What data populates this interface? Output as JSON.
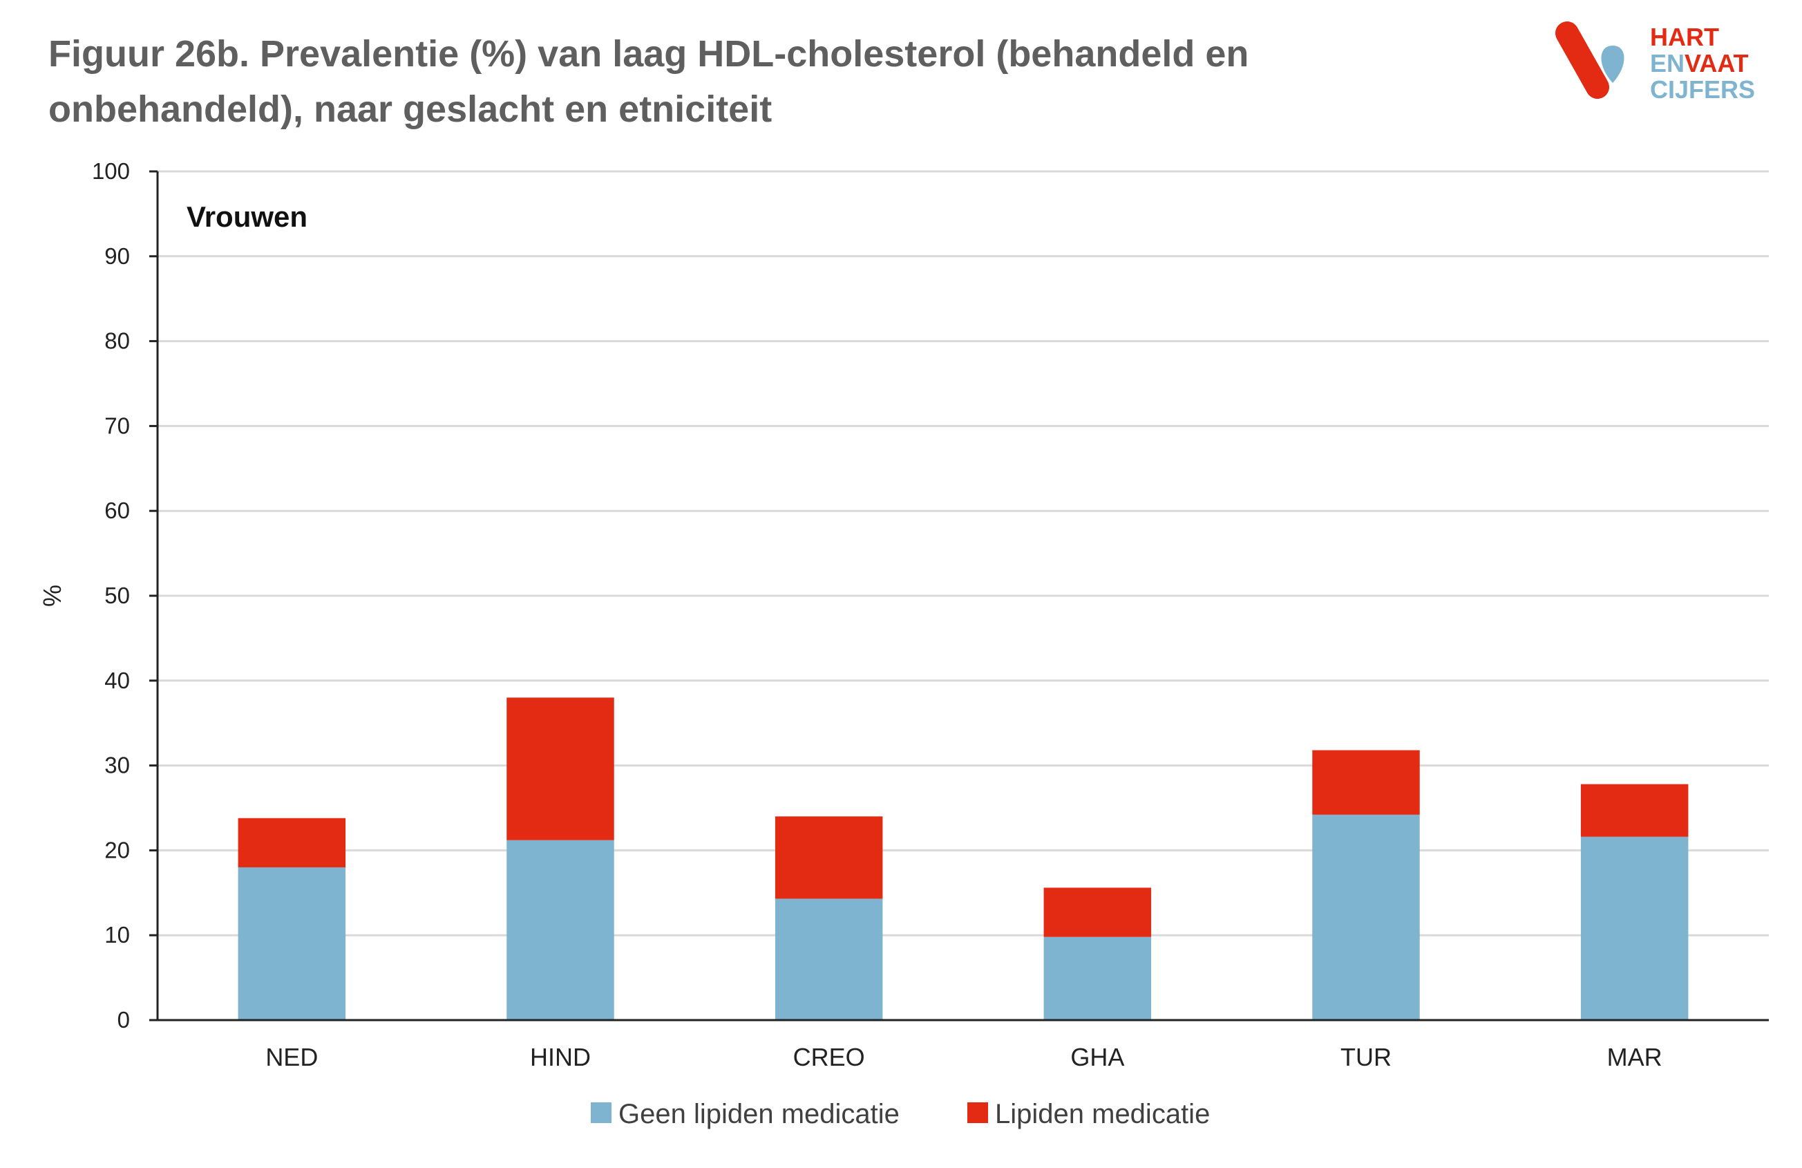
{
  "title": "Figuur 26b. Prevalentie (%) van laag  HDL-cholesterol (behandeld en onbehandeld), naar geslacht en etniciteit",
  "logo": {
    "line1": "HART",
    "line2a": "EN",
    "line2b": "VAAT",
    "line3": "CIJFERS"
  },
  "colors": {
    "blue": "#7fb4d0",
    "red": "#e32b14",
    "title": "#5f5f5f",
    "grid": "#d9d9d9"
  },
  "chart_data": {
    "type": "bar",
    "stacked": true,
    "panel_label": "Vrouwen",
    "ylabel": "%",
    "ylim": [
      0,
      100
    ],
    "yticks": [
      0,
      10,
      20,
      30,
      40,
      50,
      60,
      70,
      80,
      90,
      100
    ],
    "grid": true,
    "legend_position": "bottom",
    "categories": [
      "NED",
      "HIND",
      "CREO",
      "GHA",
      "TUR",
      "MAR"
    ],
    "series": [
      {
        "name": "Geen lipiden medicatie",
        "color": "#7fb4d0",
        "values": [
          18.0,
          21.2,
          14.3,
          9.8,
          24.2,
          21.6
        ]
      },
      {
        "name": "Lipiden medicatie",
        "color": "#e32b14",
        "values": [
          5.8,
          16.8,
          9.7,
          5.8,
          7.6,
          6.2
        ]
      }
    ]
  }
}
